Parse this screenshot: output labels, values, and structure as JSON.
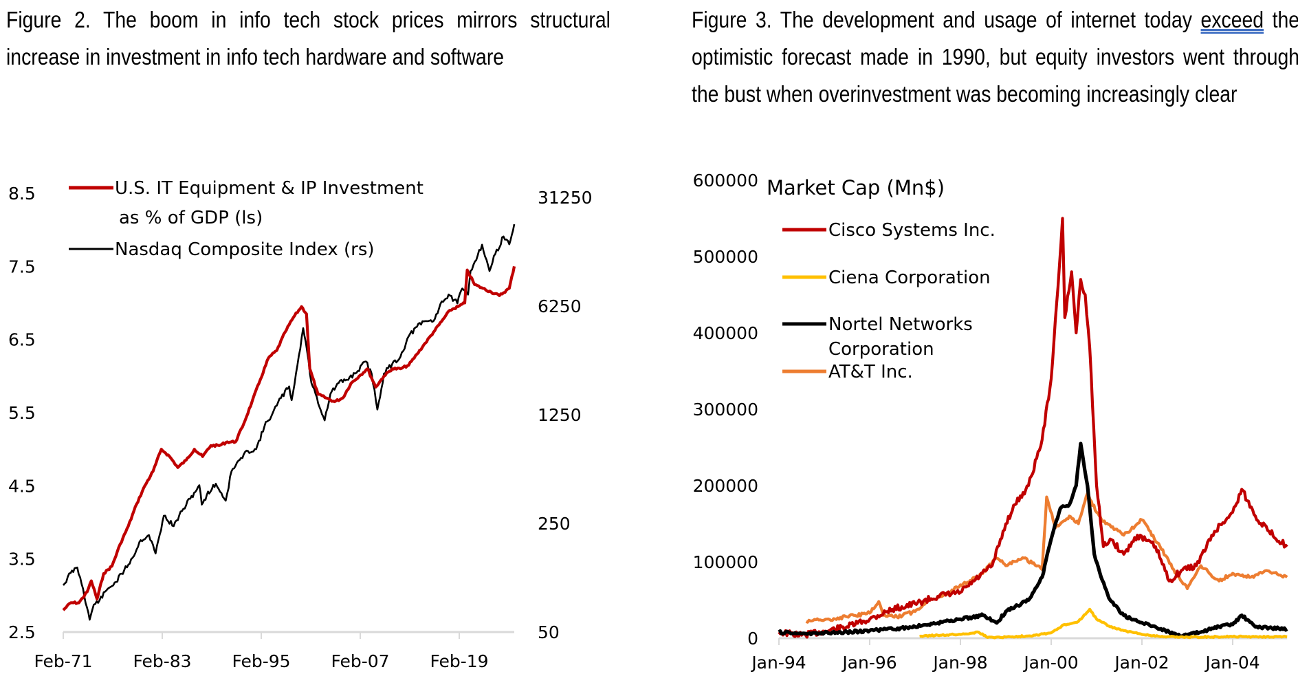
{
  "figures": [
    {
      "caption_parts": [
        "Figure 2. The boom in info tech stock prices mirrors structural increase in investment in info tech hardware and software"
      ]
    },
    {
      "caption_before": "Figure 3. The development and usage of internet today ",
      "caption_underlined": "exceed",
      "caption_after": " the optimistic forecast made in 1990, but equity investors went through the bust when overinvestment was becoming increasingly clear"
    }
  ],
  "chart_data": [
    {
      "type": "line",
      "title": "",
      "xlabel": "",
      "ylabel": "",
      "x_ticks": [
        "Feb-71",
        "Feb-83",
        "Feb-95",
        "Feb-07",
        "Feb-19"
      ],
      "x_range_years": [
        1971.1,
        2025.8
      ],
      "y_left_ticks": [
        "8.5",
        "7.5",
        "6.5",
        "5.5",
        "4.5",
        "3.5",
        "2.5"
      ],
      "y_left_range": [
        2.5,
        8.5
      ],
      "y_right_ticks": [
        "31250",
        "6250",
        "1250",
        "250",
        "50"
      ],
      "y_right_range": [
        50,
        31250
      ],
      "y_right_scale": "log",
      "grid": false,
      "legend_position": "top-left",
      "series": [
        {
          "name": "U.S. IT Equipment & IP Investment as % of GDP (ls)",
          "name_line1": "U.S. IT Equipment & IP Investment",
          "name_line2": "as % of GDP (ls)",
          "axis": "left",
          "color": "#c00000",
          "x": [
            1971.1,
            1972,
            1973,
            1974,
            1974.5,
            1975.2,
            1976,
            1977,
            1978,
            1979,
            1980,
            1981,
            1982,
            1983,
            1983.5,
            1984,
            1985,
            1986,
            1987,
            1988,
            1989,
            1990,
            1991,
            1992,
            1993,
            1994,
            1995,
            1996,
            1997,
            1998,
            1999,
            2000,
            2000.6,
            2001,
            2002,
            2003,
            2004,
            2005,
            2006,
            2007,
            2008,
            2009,
            2010,
            2011,
            2012,
            2013,
            2014,
            2015,
            2016,
            2017,
            2018,
            2019,
            2019.8,
            2020.1,
            2021,
            2022,
            2023,
            2024,
            2025.2,
            2025.8
          ],
          "values": [
            2.8,
            2.9,
            2.9,
            3.05,
            3.2,
            2.95,
            3.3,
            3.4,
            3.7,
            3.95,
            4.25,
            4.5,
            4.7,
            5.0,
            4.95,
            4.9,
            4.75,
            4.85,
            5.0,
            4.9,
            5.05,
            5.05,
            5.1,
            5.1,
            5.35,
            5.65,
            5.95,
            6.25,
            6.35,
            6.6,
            6.8,
            6.95,
            6.85,
            6.1,
            5.75,
            5.7,
            5.65,
            5.7,
            5.9,
            6.0,
            6.1,
            5.85,
            6.0,
            6.1,
            6.1,
            6.15,
            6.3,
            6.45,
            6.6,
            6.75,
            6.9,
            6.95,
            7.0,
            7.45,
            7.25,
            7.2,
            7.15,
            7.1,
            7.2,
            7.5
          ]
        },
        {
          "name": "Nasdaq Composite Index (rs)",
          "axis": "right",
          "color": "#000000",
          "x": [
            1971.1,
            1972,
            1972.8,
            1973.5,
            1974.3,
            1974.8,
            1975.5,
            1976.5,
            1977.5,
            1978.5,
            1979.5,
            1980.5,
            1981.5,
            1982.3,
            1983.3,
            1984.5,
            1985.5,
            1986.5,
            1987.6,
            1987.9,
            1988.5,
            1989.6,
            1990.8,
            1991.5,
            1992.5,
            1993.5,
            1994.5,
            1995.5,
            1996.5,
            1997.5,
            1998.5,
            1998.8,
            1999.5,
            2000.2,
            2000.5,
            2001.2,
            2001.7,
            2002.8,
            2003.5,
            2004.5,
            2005.5,
            2006.5,
            2007.8,
            2008.5,
            2009.2,
            2010,
            2011,
            2012,
            2013,
            2014,
            2015,
            2016,
            2017,
            2018,
            2018.9,
            2019.5,
            2020.2,
            2020.5,
            2021.9,
            2022.8,
            2023.5,
            2024.5,
            2025.2,
            2025.8
          ],
          "values": [
            100,
            120,
            130,
            95,
            60,
            75,
            80,
            95,
            105,
            125,
            150,
            195,
            210,
            160,
            280,
            240,
            300,
            360,
            440,
            330,
            380,
            450,
            350,
            540,
            640,
            730,
            750,
            1050,
            1280,
            1600,
            1900,
            1550,
            2600,
            4500,
            3700,
            2000,
            1700,
            1150,
            1700,
            2000,
            2100,
            2300,
            2750,
            2300,
            1350,
            2300,
            2650,
            2950,
            4000,
            4600,
            5000,
            5000,
            6700,
            7300,
            6500,
            8100,
            7400,
            10500,
            15500,
            10500,
            13500,
            17500,
            15600,
            21000
          ]
        }
      ]
    },
    {
      "type": "line",
      "title": "Market Cap (Mn$)",
      "xlabel": "",
      "ylabel": "Market Cap (Mn$)",
      "x_ticks": [
        "Jan-94",
        "Jan-96",
        "Jan-98",
        "Jan-00",
        "Jan-02",
        "Jan-04"
      ],
      "x_range_years": [
        1994.0,
        2005.2
      ],
      "y_ticks": [
        "600000",
        "500000",
        "400000",
        "300000",
        "200000",
        "100000",
        "0"
      ],
      "y_range": [
        0,
        600000
      ],
      "grid": false,
      "legend_position": "top-left",
      "series": [
        {
          "name": "Cisco Systems Inc.",
          "color": "#c00000",
          "x": [
            1994,
            1994.5,
            1995,
            1995.5,
            1996,
            1996.5,
            1997,
            1997.5,
            1998,
            1998.3,
            1998.7,
            1999,
            1999.2,
            1999.5,
            1999.8,
            2000,
            2000.15,
            2000.25,
            2000.3,
            2000.45,
            2000.55,
            2000.65,
            2000.75,
            2000.85,
            2001,
            2001.15,
            2001.3,
            2001.6,
            2001.9,
            2002.3,
            2002.6,
            2002.9,
            2003.2,
            2003.6,
            2004,
            2004.2,
            2004.5,
            2004.8,
            2005.2
          ],
          "values": [
            8000,
            4000,
            9000,
            15000,
            25000,
            38000,
            45000,
            55000,
            60000,
            75000,
            95000,
            150000,
            175000,
            200000,
            260000,
            340000,
            460000,
            550000,
            420000,
            480000,
            400000,
            470000,
            450000,
            380000,
            200000,
            120000,
            130000,
            110000,
            135000,
            120000,
            75000,
            90000,
            95000,
            140000,
            165000,
            195000,
            160000,
            140000,
            120000
          ]
        },
        {
          "name": "Ciena Corporation",
          "color": "#ffc000",
          "x": [
            1997.1,
            1997.5,
            1998,
            1998.4,
            1998.6,
            1999,
            1999.5,
            2000,
            2000.3,
            2000.6,
            2000.85,
            2001,
            2001.3,
            2001.6,
            2002,
            2002.5,
            2003,
            2004,
            2005.2
          ],
          "values": [
            2500,
            4000,
            5000,
            8000,
            1000,
            1500,
            3000,
            7000,
            18000,
            22000,
            38000,
            25000,
            15000,
            10000,
            5000,
            2000,
            1500,
            2000,
            2000
          ]
        },
        {
          "name": "Nortel Networks Corporation",
          "name_line1": "Nortel Networks",
          "name_line2": "Corporation",
          "color": "#000000",
          "x": [
            1994,
            1994.5,
            1995,
            1995.5,
            1996,
            1996.5,
            1997,
            1997.5,
            1998,
            1998.5,
            1998.8,
            1999,
            1999.5,
            1999.8,
            2000,
            2000.2,
            2000.4,
            2000.55,
            2000.65,
            2000.8,
            2000.95,
            2001.1,
            2001.3,
            2001.6,
            2001.9,
            2002.3,
            2002.6,
            2002.9,
            2003.3,
            2003.7,
            2004,
            2004.2,
            2004.5,
            2005.2
          ],
          "values": [
            8000,
            6000,
            7000,
            8000,
            10000,
            12000,
            15000,
            20000,
            25000,
            30000,
            20000,
            35000,
            50000,
            80000,
            130000,
            170000,
            175000,
            200000,
            255000,
            200000,
            110000,
            80000,
            50000,
            30000,
            22000,
            15000,
            8000,
            3000,
            8000,
            15000,
            18000,
            30000,
            15000,
            12000
          ]
        },
        {
          "name": "AT&T Inc.",
          "color": "#ed7d31",
          "x": [
            1994.6,
            1995,
            1995.5,
            1996,
            1996.2,
            1996.3,
            1996.6,
            1997,
            1997.3,
            1997.6,
            1998,
            1998.4,
            1998.8,
            1999,
            1999.4,
            1999.8,
            1999.9,
            2000.1,
            2000.4,
            2000.6,
            2000.8,
            2001,
            2001.2,
            2001.6,
            2002,
            2002.4,
            2002.7,
            2003,
            2003.3,
            2003.7,
            2004,
            2004.4,
            2004.8,
            2005.2
          ],
          "values": [
            22000,
            24000,
            28000,
            33000,
            48000,
            30000,
            28000,
            35000,
            50000,
            55000,
            70000,
            80000,
            105000,
            95000,
            105000,
            90000,
            185000,
            145000,
            160000,
            150000,
            190000,
            165000,
            150000,
            135000,
            155000,
            120000,
            90000,
            65000,
            95000,
            75000,
            85000,
            80000,
            88000,
            80000
          ]
        }
      ]
    }
  ]
}
